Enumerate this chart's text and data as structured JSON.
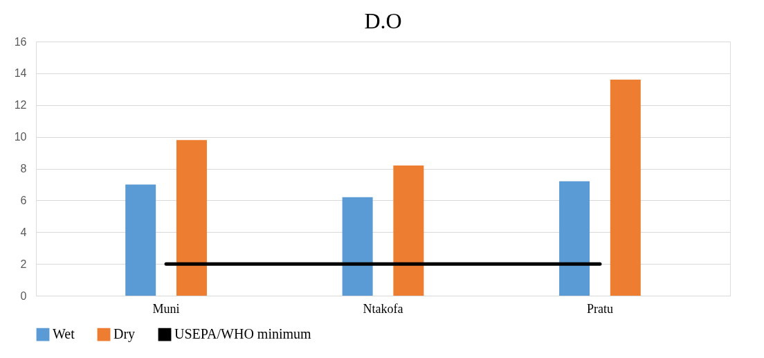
{
  "chart_data": {
    "type": "bar",
    "title": "D.O",
    "categories": [
      "Muni",
      "Ntakofa",
      "Pratu"
    ],
    "series": [
      {
        "name": "Wet",
        "color": "#5b9bd5",
        "values": [
          7.0,
          6.2,
          7.2
        ]
      },
      {
        "name": "Dry",
        "color": "#ed7d31",
        "values": [
          9.8,
          8.2,
          13.6
        ]
      },
      {
        "name": "USEPA/WHO minimum",
        "color": "#000000",
        "type": "line",
        "values": [
          2,
          2,
          2
        ]
      }
    ],
    "ylim": [
      0,
      16
    ],
    "yticks": [
      0,
      2,
      4,
      6,
      8,
      10,
      12,
      14,
      16
    ],
    "grid": "y",
    "legend": "bottom"
  }
}
